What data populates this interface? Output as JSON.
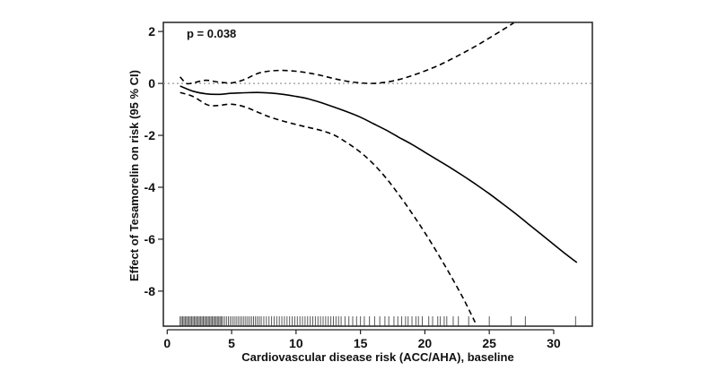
{
  "chart_data": {
    "type": "line",
    "title": "",
    "xlabel": "Cardiovascular disease risk (ACC/AHA), baseline",
    "ylabel": "Effect of Tesamorelin on risk (95 % CI)",
    "xlim": [
      -0.3,
      33.0
    ],
    "ylim": [
      -9.35,
      2.35
    ],
    "x_ticks": [
      0,
      5,
      10,
      15,
      20,
      25,
      30
    ],
    "x_tick_labels": [
      "0",
      "5",
      "10",
      "15",
      "20",
      "25",
      "30"
    ],
    "y_ticks": [
      2,
      0,
      -2,
      -4,
      -6,
      -8
    ],
    "y_tick_labels": [
      "2",
      "0",
      "-2",
      "-4",
      "-6",
      "-8"
    ],
    "annotation": "p = 0.038",
    "reference_line": {
      "y": 0,
      "style": "dotted",
      "color": "#999999"
    },
    "series": [
      {
        "name": "Effect estimate",
        "style": "solid",
        "color": "#000000",
        "x": [
          1.0,
          2.0,
          3.0,
          4.0,
          5.0,
          6.0,
          7.0,
          8.0,
          9.0,
          10.0,
          11.0,
          12.0,
          13.0,
          14.0,
          15.0,
          16.0,
          17.0,
          18.0,
          19.0,
          20.0,
          21.0,
          22.0,
          23.0,
          24.0,
          25.0,
          26.0,
          27.0,
          28.0,
          29.0,
          30.0,
          31.0,
          31.8
        ],
        "y": [
          -0.1,
          -0.3,
          -0.4,
          -0.42,
          -0.38,
          -0.36,
          -0.35,
          -0.37,
          -0.42,
          -0.5,
          -0.6,
          -0.75,
          -0.92,
          -1.1,
          -1.3,
          -1.55,
          -1.8,
          -2.08,
          -2.35,
          -2.65,
          -2.95,
          -3.25,
          -3.57,
          -3.9,
          -4.25,
          -4.62,
          -5.0,
          -5.4,
          -5.8,
          -6.2,
          -6.6,
          -6.9
        ]
      },
      {
        "name": "Upper 95% CI",
        "style": "dashed",
        "color": "#000000",
        "x": [
          1.0,
          1.5,
          2.0,
          3.0,
          4.0,
          5.0,
          6.0,
          7.0,
          8.0,
          9.0,
          10.0,
          11.0,
          12.0,
          13.0,
          14.0,
          15.0,
          16.0,
          17.0,
          18.0,
          19.0,
          20.0,
          21.0,
          22.0,
          23.0,
          24.0,
          25.0,
          26.0,
          26.9
        ],
        "y": [
          0.25,
          0.0,
          0.02,
          0.12,
          0.05,
          0.02,
          0.15,
          0.38,
          0.48,
          0.5,
          0.47,
          0.4,
          0.3,
          0.18,
          0.08,
          0.02,
          0.0,
          0.05,
          0.15,
          0.3,
          0.48,
          0.68,
          0.92,
          1.18,
          1.45,
          1.75,
          2.05,
          2.33
        ]
      },
      {
        "name": "Lower 95% CI",
        "style": "dashed",
        "color": "#000000",
        "x": [
          1.0,
          2.0,
          3.0,
          3.5,
          4.0,
          5.0,
          6.0,
          7.0,
          8.0,
          9.0,
          10.0,
          11.0,
          12.0,
          13.0,
          14.0,
          15.0,
          16.0,
          17.0,
          18.0,
          19.0,
          20.0,
          21.0,
          22.0,
          23.0,
          23.9
        ],
        "y": [
          -0.35,
          -0.5,
          -0.8,
          -0.86,
          -0.85,
          -0.8,
          -0.9,
          -1.1,
          -1.3,
          -1.45,
          -1.58,
          -1.7,
          -1.82,
          -2.0,
          -2.3,
          -2.65,
          -3.1,
          -3.65,
          -4.3,
          -5.0,
          -5.75,
          -6.55,
          -7.4,
          -8.3,
          -9.2
        ]
      }
    ],
    "rug": [
      1.0,
      1.1,
      1.2,
      1.3,
      1.4,
      1.5,
      1.6,
      1.7,
      1.8,
      1.9,
      2.0,
      2.1,
      2.2,
      2.3,
      2.4,
      2.5,
      2.6,
      2.7,
      2.8,
      2.9,
      3.0,
      3.1,
      3.2,
      3.3,
      3.4,
      3.5,
      3.6,
      3.7,
      3.8,
      3.9,
      4.0,
      4.1,
      4.2,
      4.3,
      4.45,
      4.6,
      4.75,
      4.9,
      5.05,
      5.2,
      5.35,
      5.5,
      5.65,
      5.8,
      5.95,
      6.1,
      6.25,
      6.4,
      6.55,
      6.7,
      6.85,
      7.0,
      7.15,
      7.3,
      7.5,
      7.7,
      7.9,
      8.1,
      8.3,
      8.5,
      8.7,
      8.9,
      9.1,
      9.3,
      9.5,
      9.7,
      9.9,
      10.1,
      10.3,
      10.5,
      10.7,
      10.9,
      11.1,
      11.3,
      11.5,
      11.7,
      11.9,
      12.1,
      12.3,
      12.5,
      12.7,
      12.9,
      13.1,
      13.3,
      13.5,
      13.8,
      14.1,
      14.4,
      14.7,
      15.0,
      15.3,
      15.7,
      16.1,
      16.5,
      16.9,
      17.2,
      17.6,
      17.9,
      18.2,
      18.5,
      18.7,
      19.0,
      19.3,
      19.5,
      19.8,
      20.3,
      20.6,
      21.0,
      21.2,
      21.5,
      21.7,
      22.2,
      22.6,
      23.4,
      25.0,
      26.7,
      27.8,
      31.7
    ]
  }
}
